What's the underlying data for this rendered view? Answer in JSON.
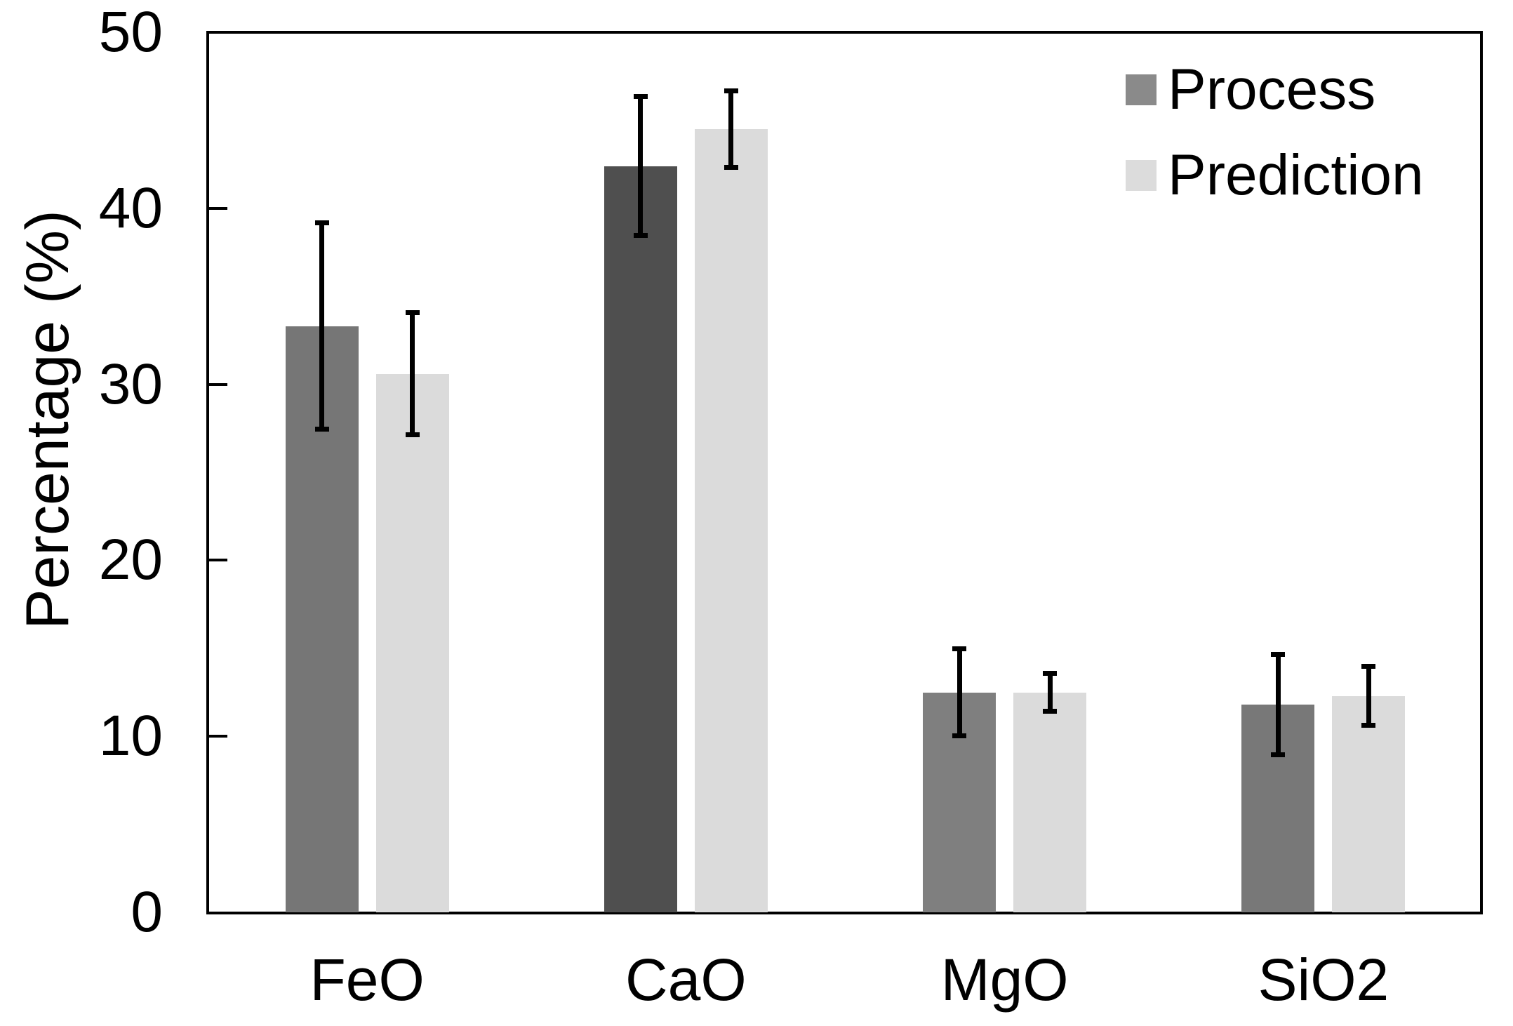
{
  "chart_data": {
    "type": "bar",
    "title": "",
    "xlabel": "",
    "ylabel": "Percentage (%)",
    "categories": [
      "FeO",
      "CaO",
      "MgO",
      "SiO2"
    ],
    "series": [
      {
        "name": "Process",
        "values": [
          33.3,
          42.4,
          12.5,
          11.8
        ],
        "errors": [
          6.0,
          4.1,
          2.6,
          3.0
        ],
        "colors": [
          "#767676",
          "#4f4f4f",
          "#7f7f7f",
          "#787878"
        ]
      },
      {
        "name": "Prediction",
        "values": [
          30.6,
          44.5,
          12.5,
          12.3
        ],
        "errors": [
          3.6,
          2.3,
          1.2,
          1.8
        ],
        "colors": [
          "#dbdbdb",
          "#dbdbdb",
          "#dbdbdb",
          "#dbdbdb"
        ]
      }
    ],
    "ylim": [
      0,
      50
    ],
    "yticks": [
      0,
      10,
      20,
      30,
      40,
      50
    ],
    "grid": false,
    "error_bars": true,
    "frame": "full-box",
    "tick_direction": "in",
    "legend_position": "top-right",
    "legend_items": [
      {
        "label": "Process",
        "swatch_color": "#8a8a8a"
      },
      {
        "label": "Prediction",
        "swatch_color": "#dcdcdc"
      }
    ],
    "axis_color": "#000000",
    "background_color": "#ffffff"
  }
}
